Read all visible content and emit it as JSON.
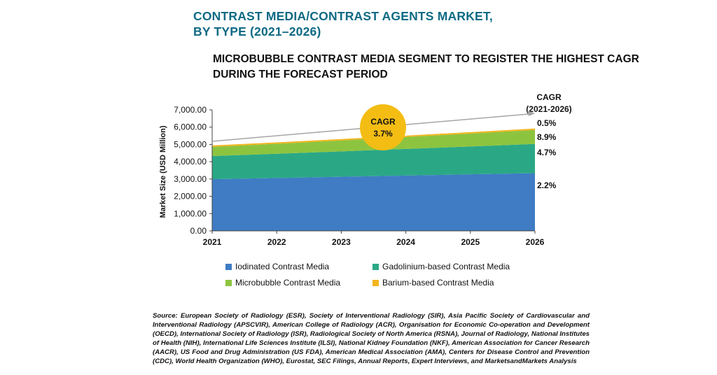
{
  "title_line1": "CONTRAST MEDIA/CONTRAST AGENTS MARKET,",
  "title_line2": "BY TYPE (2021–2026)",
  "subtitle_line1": "MICROBUBBLE CONTRAST MEDIA SEGMENT TO REGISTER THE HIGHEST CAGR",
  "subtitle_line2": "DURING THE FORECAST PERIOD",
  "cagr_header_line1": "CAGR",
  "cagr_header_line2": "(2021-2026)",
  "bubble_line1": "CAGR",
  "bubble_line2": "3.7%",
  "source": "Source: European Society of Radiology (ESR), Society of Interventional Radiology (SIR), Asia Pacific Society of Cardiovascular and Interventional Radiology (APSCVIR), American College of Radiology (ACR), Organisation for Economic Co-operation and Development (OECD), International Society of Radiology (ISR), Radiological Society of North America (RSNA), Journal of Radiology, National Institutes of Health (NIH), International Life Sciences Institute (ILSI), National Kidney Foundation (NKF), American Association for Cancer Research (AACR), US Food and Drug Administration (US FDA), American Medical Association (AMA), Centers for Disease Control and Prevention (CDC), World Health Organization (WHO), Eurostat, SEC Filings, Annual Reports, Expert Interviews, and MarketsandMarkets Analysis",
  "chart_data": {
    "type": "area",
    "stacked": true,
    "x": [
      "2021",
      "2022",
      "2023",
      "2024",
      "2025",
      "2026"
    ],
    "ylabel": "Market Size (USD Million)",
    "ylim": [
      0,
      7000
    ],
    "yticks": [
      "0.00",
      "1,000.00",
      "2,000.00",
      "3,000.00",
      "4,000.00",
      "5,000.00",
      "6,000.00",
      "7,000.00"
    ],
    "series": [
      {
        "name": "Iodinated Contrast Media",
        "color": "#3f7cc4",
        "values": [
          2990,
          3060,
          3130,
          3200,
          3270,
          3340
        ],
        "cagr": "2.2%"
      },
      {
        "name": "Gadolinium-based Contrast Media",
        "color": "#2aa886",
        "values": [
          1340,
          1400,
          1470,
          1540,
          1610,
          1690
        ],
        "cagr": "4.7%"
      },
      {
        "name": "Microbubble Contrast Media",
        "color": "#8dc43f",
        "values": [
          530,
          580,
          630,
          690,
          750,
          810
        ],
        "cagr": "8.9%"
      },
      {
        "name": "Barium-based Contrast Media",
        "color": "#f2b51d",
        "values": [
          80,
          80,
          80,
          80,
          80,
          80
        ],
        "cagr": "0.5%"
      }
    ],
    "overall_cagr": "3.7%",
    "legend_position": "bottom"
  }
}
